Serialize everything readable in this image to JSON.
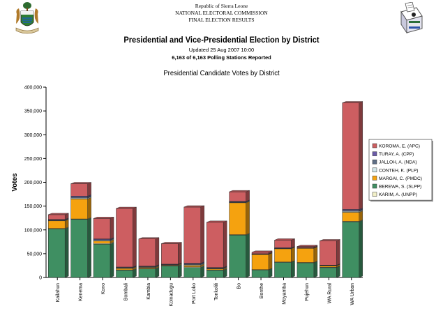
{
  "header": {
    "country": "Republic of Sierra Leone",
    "commission": "NATIONAL ELECTORAL COMMISSION",
    "results_label": "FINAL ELECTION RESULTS",
    "title": "Presidential and Vice-Presidential Election by District",
    "updated": "Updated 25 Aug 2007 10:00",
    "stations": "6,163 of 6,163 Polling Stations Reported"
  },
  "chart_data": {
    "type": "bar",
    "stacked": true,
    "title": "Presidential Candidate Votes by District",
    "ylabel": "Votes",
    "ylim": [
      0,
      400000
    ],
    "yticks": [
      0,
      50000,
      100000,
      150000,
      200000,
      250000,
      300000,
      350000,
      400000
    ],
    "ytick_labels": [
      "0",
      "50,000",
      "100,000",
      "150,000",
      "200,000",
      "250,000",
      "300,000",
      "350,000",
      "400,000"
    ],
    "grid": false,
    "legend_position": "right",
    "categories": [
      "Kailahun",
      "Kenema",
      "Kono",
      "Bombali",
      "Kambia",
      "Koinadugu",
      "Port Loko",
      "Tonkolili",
      "Bo",
      "Bonthe",
      "Moyamba",
      "Pujehun",
      "WA Rural",
      "WA Urban"
    ],
    "series": [
      {
        "name": "BEREWA, S. (SLPP)",
        "color": "#3f8f62",
        "values": [
          102000,
          122000,
          70000,
          15000,
          18000,
          24000,
          21000,
          15000,
          89000,
          16000,
          32000,
          31000,
          21000,
          117000
        ]
      },
      {
        "name": "KARIM, A. (UNPP)",
        "color": "#f2f0c8",
        "values": [
          1000,
          1000,
          1500,
          1000,
          1000,
          1000,
          1500,
          1000,
          1000,
          500,
          500,
          500,
          500,
          1000
        ]
      },
      {
        "name": "MARGAI, C. (PMDC)",
        "color": "#f5a20f",
        "values": [
          16000,
          42000,
          5000,
          3000,
          2000,
          1500,
          3000,
          2000,
          67000,
          32000,
          28000,
          30000,
          3000,
          19000
        ]
      },
      {
        "name": "CONTEH, K. (PLP)",
        "color": "#d3e8ea",
        "values": [
          1000,
          2000,
          1500,
          1000,
          1000,
          500,
          1500,
          1000,
          1000,
          500,
          500,
          500,
          500,
          2000
        ]
      },
      {
        "name": "JALLOH, A. (NDA)",
        "color": "#5f6f86",
        "values": [
          1000,
          2000,
          1500,
          1000,
          1000,
          500,
          1500,
          1000,
          1000,
          500,
          500,
          500,
          500,
          2000
        ]
      },
      {
        "name": "TURAY, A. (CPP)",
        "color": "#6a5aa8",
        "values": [
          1000,
          2000,
          1500,
          1000,
          1000,
          500,
          1500,
          1000,
          1000,
          500,
          1000,
          500,
          500,
          2000
        ]
      },
      {
        "name": "KOROMA, E. (APC)",
        "color": "#cd5e61",
        "values": [
          10000,
          26000,
          43000,
          123000,
          57000,
          43000,
          118000,
          95000,
          20000,
          3000,
          16000,
          2000,
          51000,
          224000
        ]
      }
    ],
    "legend_order": [
      "KOROMA, E. (APC)",
      "TURAY, A. (CPP)",
      "JALLOH, A. (NDA)",
      "CONTEH, K. (PLP)",
      "MARGAI, C. (PMDC)",
      "BEREWA, S. (SLPP)",
      "KARIM, A. (UNPP)"
    ]
  }
}
